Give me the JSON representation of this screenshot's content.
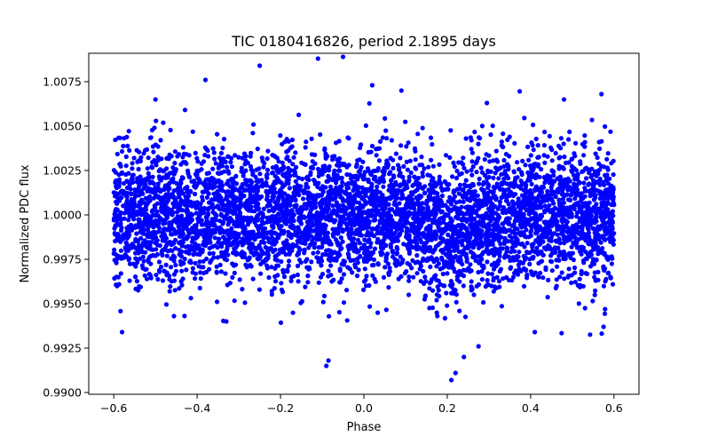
{
  "chart_data": {
    "type": "scatter",
    "title": "TIC 0180416826, period 2.1895 days",
    "xlabel": "Phase",
    "ylabel": "Normalized PDC flux",
    "xlim": [
      -0.66,
      0.66
    ],
    "ylim": [
      0.9899,
      1.0091
    ],
    "xticks": [
      {
        "value": -0.6,
        "label": "−0.6"
      },
      {
        "value": -0.4,
        "label": "−0.4"
      },
      {
        "value": -0.2,
        "label": "−0.2"
      },
      {
        "value": 0.0,
        "label": "0.0"
      },
      {
        "value": 0.2,
        "label": "0.2"
      },
      {
        "value": 0.4,
        "label": "0.4"
      },
      {
        "value": 0.6,
        "label": "0.6"
      }
    ],
    "yticks": [
      {
        "value": 0.99,
        "label": "0.9900"
      },
      {
        "value": 0.9925,
        "label": "0.9925"
      },
      {
        "value": 0.995,
        "label": "0.9950"
      },
      {
        "value": 0.9975,
        "label": "0.9975"
      },
      {
        "value": 1.0,
        "label": "1.0000"
      },
      {
        "value": 1.0025,
        "label": "1.0025"
      },
      {
        "value": 1.005,
        "label": "1.0050"
      },
      {
        "value": 1.0075,
        "label": "1.0075"
      }
    ],
    "grid": false,
    "marker_color": "#0000ff",
    "series": [
      {
        "name": "PDC flux",
        "points_sampled": {
          "x_range": [
            -0.6,
            0.6
          ],
          "count": 5200,
          "baseline": 1.0,
          "scatter_sigma": 0.0019,
          "dip": {
            "center": 0.215,
            "depth": 0.0012,
            "width": 0.06
          }
        },
        "points_notable": [
          {
            "x": -0.58,
            "y": 0.9934
          },
          {
            "x": -0.38,
            "y": 1.0076
          },
          {
            "x": -0.25,
            "y": 1.0084
          },
          {
            "x": -0.11,
            "y": 1.0088
          },
          {
            "x": -0.05,
            "y": 1.0089
          },
          {
            "x": 0.02,
            "y": 1.0073
          },
          {
            "x": 0.09,
            "y": 1.007
          },
          {
            "x": -0.09,
            "y": 0.9915
          },
          {
            "x": -0.085,
            "y": 0.9918
          },
          {
            "x": 0.21,
            "y": 0.9907
          },
          {
            "x": 0.22,
            "y": 0.9911
          },
          {
            "x": 0.24,
            "y": 0.992
          },
          {
            "x": 0.275,
            "y": 0.9926
          },
          {
            "x": 0.41,
            "y": 0.9934
          },
          {
            "x": 0.575,
            "y": 0.9937
          },
          {
            "x": 0.57,
            "y": 1.0068
          },
          {
            "x": 0.48,
            "y": 1.0065
          },
          {
            "x": 0.295,
            "y": 1.0063
          },
          {
            "x": -0.5,
            "y": 1.0065
          },
          {
            "x": -0.33,
            "y": 0.994
          }
        ]
      }
    ]
  }
}
